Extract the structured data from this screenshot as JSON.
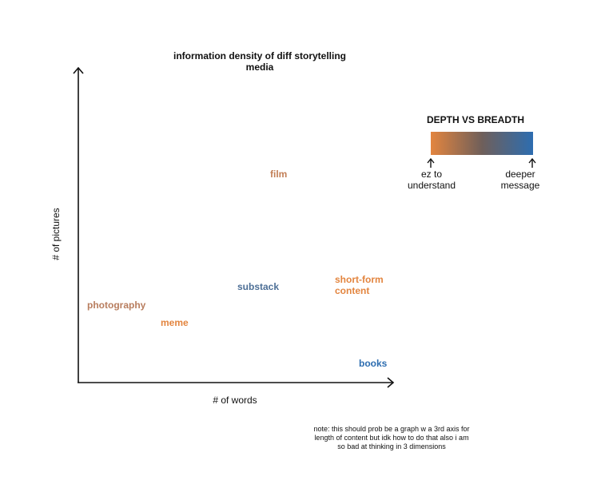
{
  "title": "information density of diff storytelling media",
  "x_axis_label": "# of words",
  "y_axis_label": "# of pictures",
  "points": [
    {
      "label": "film",
      "color": "#C27F57"
    },
    {
      "label": "substack",
      "color": "#4D6F96"
    },
    {
      "label": "short-form content",
      "color": "#E3853F"
    },
    {
      "label": "photography",
      "color": "#B87D5E"
    },
    {
      "label": "meme",
      "color": "#E3853F"
    },
    {
      "label": "books",
      "color": "#2D6DB0"
    }
  ],
  "legend": {
    "title": "DEPTH VS BREADTH",
    "gradient_start": "#E3853F",
    "gradient_end": "#2D6DB0",
    "left_label": "ez to understand",
    "right_label": "deeper message"
  },
  "note": "note: this should prob be a graph w a 3rd axis for length of content but idk how to do that also i am so bad at thinking in 3 dimensions"
}
